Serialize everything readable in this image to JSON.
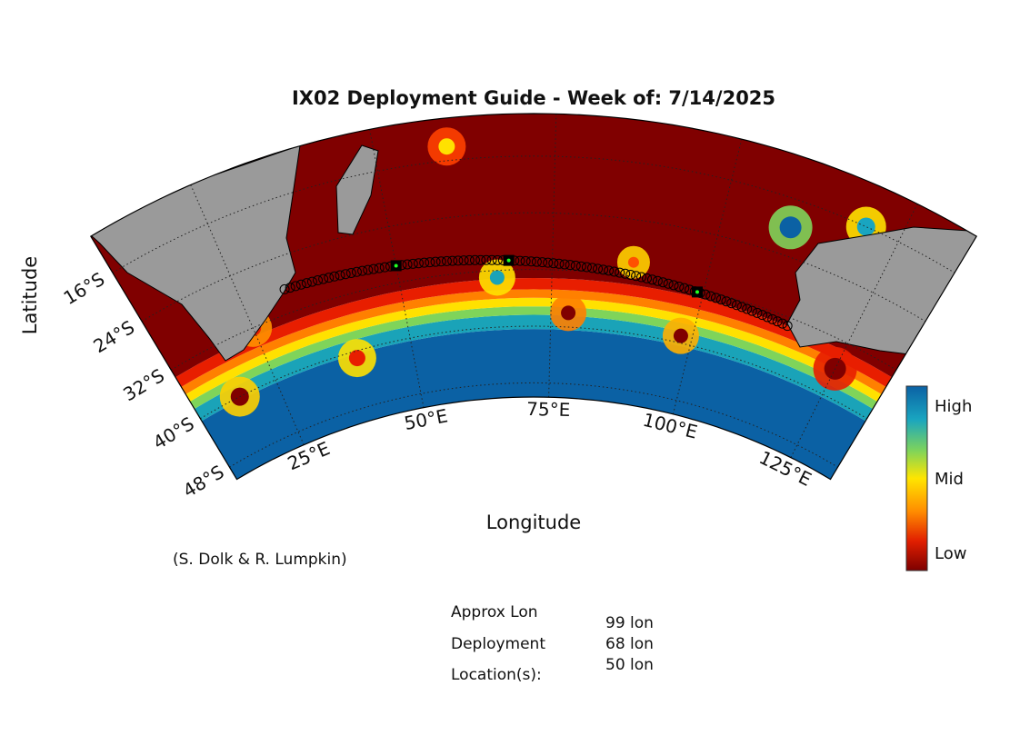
{
  "title": "IX02 Deployment Guide - Week of: 7/14/2025",
  "map": {
    "lonlim": [
      10,
      134
    ],
    "latlim": [
      -50,
      -10
    ],
    "lonticks": [
      {
        "value": 25,
        "label": "25°E"
      },
      {
        "value": 50,
        "label": "50°E"
      },
      {
        "value": 75,
        "label": "75°E"
      },
      {
        "value": 100,
        "label": "100°E"
      },
      {
        "value": 125,
        "label": "125°E"
      }
    ],
    "latticks": [
      {
        "value": -16,
        "label": "16°S"
      },
      {
        "value": -24,
        "label": "24°S"
      },
      {
        "value": -32,
        "label": "32°S"
      },
      {
        "value": -40,
        "label": "40°S"
      },
      {
        "value": -48,
        "label": "48°S"
      }
    ],
    "xlabel": "Longitude",
    "ylabel": "Latitude"
  },
  "colorbar": {
    "labels": [
      "High",
      "Mid",
      "Low"
    ]
  },
  "credit": "(S. Dolk & R. Lumpkin)",
  "deployment": {
    "heading": [
      "Approx Lon",
      "Deployment",
      "Location(s):"
    ],
    "locations": [
      {
        "value": 99,
        "label": "99 lon"
      },
      {
        "value": 68,
        "label": "68 lon"
      },
      {
        "value": 50,
        "label": "50 lon"
      }
    ]
  }
}
